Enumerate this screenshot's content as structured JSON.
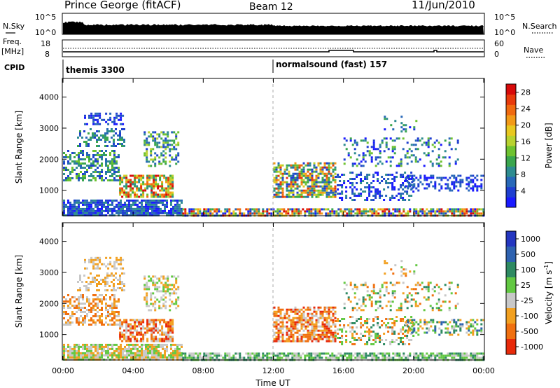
{
  "header": {
    "station": "Prince George (fitACF)",
    "beam": "Beam 12",
    "date": "11/Jun/2010"
  },
  "summary": {
    "nsky": {
      "label_top": "N.Sky",
      "tick_top": "10^5",
      "tick_bottom": "10^0"
    },
    "nsearch": {
      "label": "N.Search",
      "tick_top": "10^5",
      "tick_bottom": "10^0"
    },
    "freq": {
      "label_top": "Freq.",
      "label_bottom": "[MHz]",
      "tick_top": "18",
      "tick_bottom": "8"
    },
    "nave": {
      "label": "Nave",
      "tick_top": "60",
      "tick_bottom": "0"
    },
    "cpid": {
      "label": "CPID",
      "segments": [
        {
          "start_hour": 0,
          "text": "themis 3300"
        },
        {
          "start_hour": 12,
          "text": "normalsound (fast) 157"
        }
      ]
    }
  },
  "chart_data": [
    {
      "type": "heatmap",
      "title": "",
      "xlabel": "",
      "ylabel": "Slant Range [km]",
      "xlim_hours": [
        0,
        24
      ],
      "ylim_km": [
        180,
        4600
      ],
      "yticks": [
        1000,
        2000,
        3000,
        4000
      ],
      "ytick_labels": [
        "1000",
        "2000",
        "3000",
        "4000"
      ],
      "grid": false,
      "colorbar": {
        "label": "Power [dB]",
        "range": [
          0,
          30
        ],
        "tick_values": [
          4,
          8,
          12,
          16,
          20,
          24,
          28
        ],
        "tick_labels": [
          "4",
          "8",
          "12",
          "16",
          "20",
          "24",
          "28"
        ],
        "colors": [
          "#1a1aff",
          "#1f3fd0",
          "#2868b8",
          "#2e8c90",
          "#3aa64e",
          "#6ec230",
          "#b8d230",
          "#e8c820",
          "#f29a18",
          "#f06a10",
          "#e83a0c",
          "#d80a0a"
        ]
      }
    },
    {
      "type": "heatmap",
      "title": "",
      "xlabel": "Time UT",
      "ylabel": "Slant Range [km]",
      "xlim_hours": [
        0,
        24
      ],
      "ylim_km": [
        180,
        4600
      ],
      "yticks": [
        1000,
        2000,
        3000,
        4000
      ],
      "ytick_labels": [
        "1000",
        "2000",
        "3000",
        "4000"
      ],
      "xticks_hours": [
        0,
        4,
        8,
        12,
        16,
        20,
        24
      ],
      "xtick_labels": [
        "00:00",
        "04:00",
        "08:00",
        "12:00",
        "16:00",
        "20:00",
        "00:00"
      ],
      "grid": false,
      "colorbar": {
        "label": "Velocity [m s^-1]",
        "tick_labels": [
          "1000",
          "500",
          "100",
          "25",
          "-25",
          "-100",
          "-500",
          "-1000"
        ],
        "colors": [
          "#2436c0",
          "#2e62b0",
          "#2e8a62",
          "#62c842",
          "#c8c8c8",
          "#f2a020",
          "#f07010",
          "#e82a0a"
        ]
      }
    }
  ]
}
